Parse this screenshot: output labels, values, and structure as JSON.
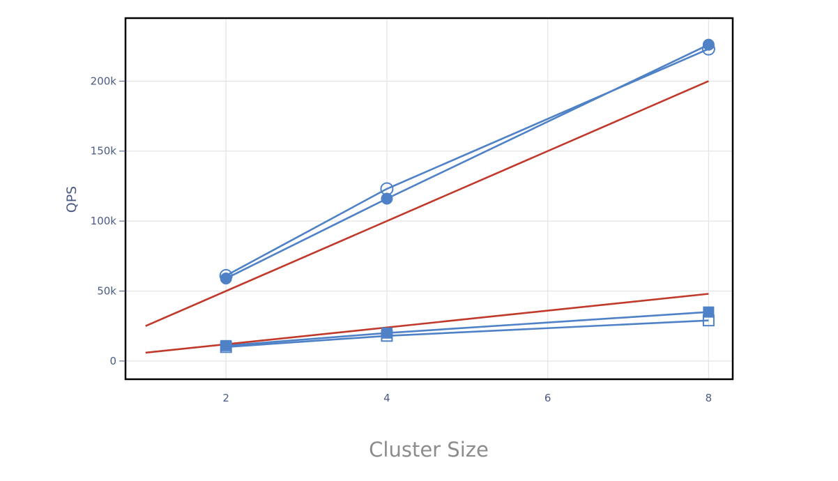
{
  "chart_data": {
    "type": "line",
    "title": "",
    "xlabel": "Cluster Size",
    "ylabel": "QPS",
    "xlim": [
      0.75,
      8.3
    ],
    "ylim": [
      -13000,
      245000
    ],
    "x_ticks": [
      2,
      4,
      6,
      8
    ],
    "x_tick_labels": [
      "2",
      "4",
      "6",
      "8"
    ],
    "y_ticks": [
      0,
      50000,
      100000,
      150000,
      200000
    ],
    "y_tick_labels": [
      "0",
      "50k",
      "100k",
      "150k",
      "200k"
    ],
    "grid": true,
    "legend": "none",
    "colors": {
      "measured": "#4f81c7",
      "linear": "#c0392b",
      "grid": "#e4e4e4",
      "frame": "#000000"
    },
    "series": [
      {
        "marker": "circle-open",
        "color": "#4f81c7",
        "x": [
          2,
          4,
          8
        ],
        "y": [
          61000,
          123000,
          223000
        ]
      },
      {
        "marker": "circle",
        "color": "#4f81c7",
        "x": [
          2,
          4,
          8
        ],
        "y": [
          59000,
          116000,
          226000
        ]
      },
      {
        "marker": "square-open",
        "color": "#4f81c7",
        "x": [
          2,
          4,
          8
        ],
        "y": [
          10000,
          18000,
          29000
        ]
      },
      {
        "marker": "square",
        "color": "#4f81c7",
        "x": [
          2,
          4,
          8
        ],
        "y": [
          11000,
          20000,
          35000
        ]
      },
      {
        "marker": "none",
        "color": "#c0392b",
        "x": [
          1,
          8
        ],
        "y": [
          25000,
          200000
        ]
      },
      {
        "marker": "none",
        "color": "#c0392b",
        "x": [
          1,
          8
        ],
        "y": [
          6000,
          48000
        ]
      }
    ]
  }
}
